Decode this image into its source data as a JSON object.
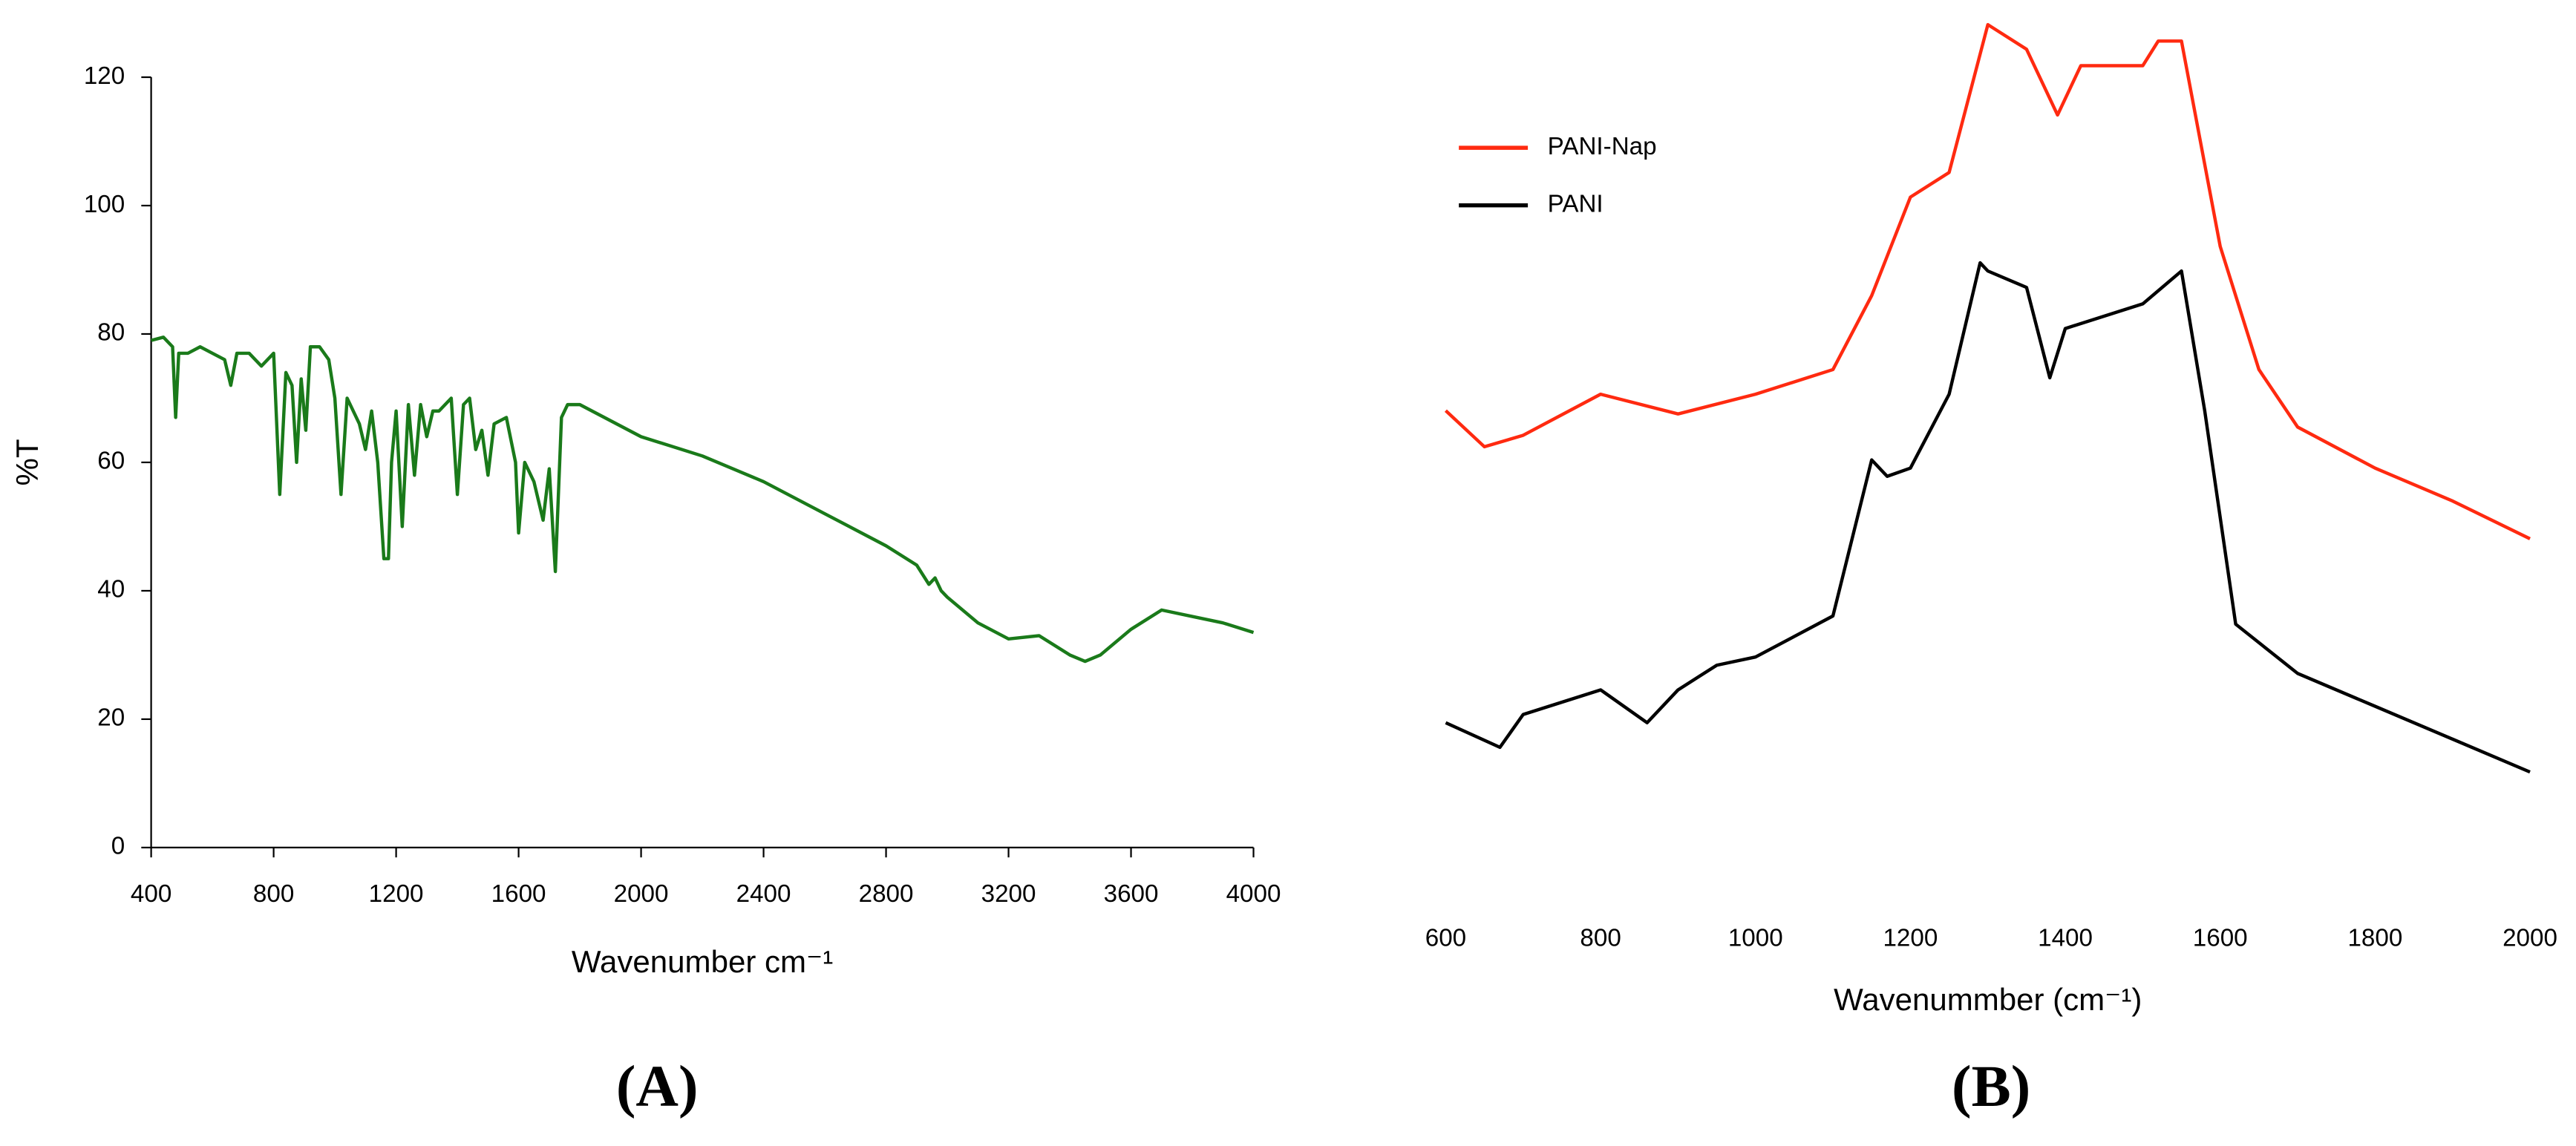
{
  "chart_data": [
    {
      "type": "line",
      "label": "(A)",
      "x_label": "Wavenumber cm⁻¹",
      "y_label": "%T",
      "xlim": [
        400,
        4000
      ],
      "xticks": [
        400,
        800,
        1200,
        1600,
        2000,
        2400,
        2800,
        3200,
        3600,
        4000
      ],
      "ylim": [
        0,
        120
      ],
      "yticks": [
        0,
        20,
        40,
        60,
        80,
        100,
        120
      ],
      "series": [
        {
          "color": "#1a7a1a",
          "x": [
            400,
            440,
            470,
            480,
            490,
            520,
            560,
            600,
            640,
            660,
            680,
            720,
            760,
            800,
            820,
            840,
            860,
            875,
            890,
            905,
            920,
            950,
            980,
            1000,
            1020,
            1040,
            1080,
            1100,
            1120,
            1140,
            1160,
            1175,
            1185,
            1200,
            1220,
            1240,
            1260,
            1280,
            1300,
            1320,
            1340,
            1360,
            1380,
            1400,
            1420,
            1440,
            1460,
            1480,
            1500,
            1520,
            1560,
            1590,
            1600,
            1620,
            1650,
            1680,
            1700,
            1720,
            1740,
            1760,
            1800,
            2000,
            2200,
            2400,
            2600,
            2800,
            2900,
            2940,
            2960,
            2980,
            3000,
            3100,
            3200,
            3300,
            3400,
            3450,
            3500,
            3600,
            3700,
            3800,
            3900,
            4000
          ],
          "values": [
            79,
            79.5,
            78,
            67,
            77,
            77,
            78,
            77,
            76,
            72,
            77,
            77,
            75,
            77,
            55,
            74,
            72,
            60,
            73,
            65,
            78,
            78,
            76,
            70,
            55,
            70,
            66,
            62,
            68,
            60,
            45,
            45,
            60,
            68,
            50,
            69,
            58,
            69,
            64,
            68,
            68,
            69,
            70,
            55,
            69,
            70,
            62,
            65,
            58,
            66,
            67,
            60,
            49,
            60,
            57,
            51,
            59,
            43,
            67,
            69,
            69,
            64,
            61,
            57,
            52,
            47,
            44,
            41,
            42,
            40,
            39,
            35,
            32.5,
            33,
            30,
            29,
            30,
            34,
            37,
            36,
            35,
            33.5
          ]
        }
      ]
    },
    {
      "type": "line",
      "label": "(B)",
      "x_label": "Wavenummber (cm⁻¹)",
      "xlim": [
        600,
        2000
      ],
      "xticks": [
        600,
        800,
        1000,
        1200,
        1400,
        1600,
        1800,
        2000
      ],
      "ylim": [
        0,
        104
      ],
      "series": [
        {
          "name": "PANI-Nap",
          "color": "#ff2a10",
          "x": [
            600,
            650,
            700,
            800,
            900,
            1000,
            1100,
            1150,
            1200,
            1250,
            1300,
            1350,
            1390,
            1420,
            1500,
            1520,
            1550,
            1580,
            1600,
            1650,
            1700,
            1800,
            1900,
            2000
          ],
          "values": [
            54,
            49.6,
            51,
            56,
            53.6,
            56,
            59,
            68,
            80,
            83,
            101,
            98,
            90,
            96,
            96,
            99,
            99,
            84,
            74,
            59,
            52,
            47,
            43,
            38.4
          ]
        },
        {
          "name": "PANI",
          "color": "#000000",
          "x": [
            600,
            670,
            700,
            800,
            860,
            900,
            950,
            1000,
            1100,
            1150,
            1170,
            1200,
            1250,
            1290,
            1300,
            1350,
            1380,
            1400,
            1500,
            1550,
            1580,
            1620,
            1700,
            1800,
            1900,
            2000
          ],
          "values": [
            16,
            13,
            17,
            20,
            16,
            20,
            23,
            24,
            29,
            48,
            46,
            47,
            56,
            72,
            71,
            69,
            58,
            64,
            67,
            71,
            54,
            28,
            22,
            18,
            14,
            10
          ]
        }
      ]
    }
  ]
}
